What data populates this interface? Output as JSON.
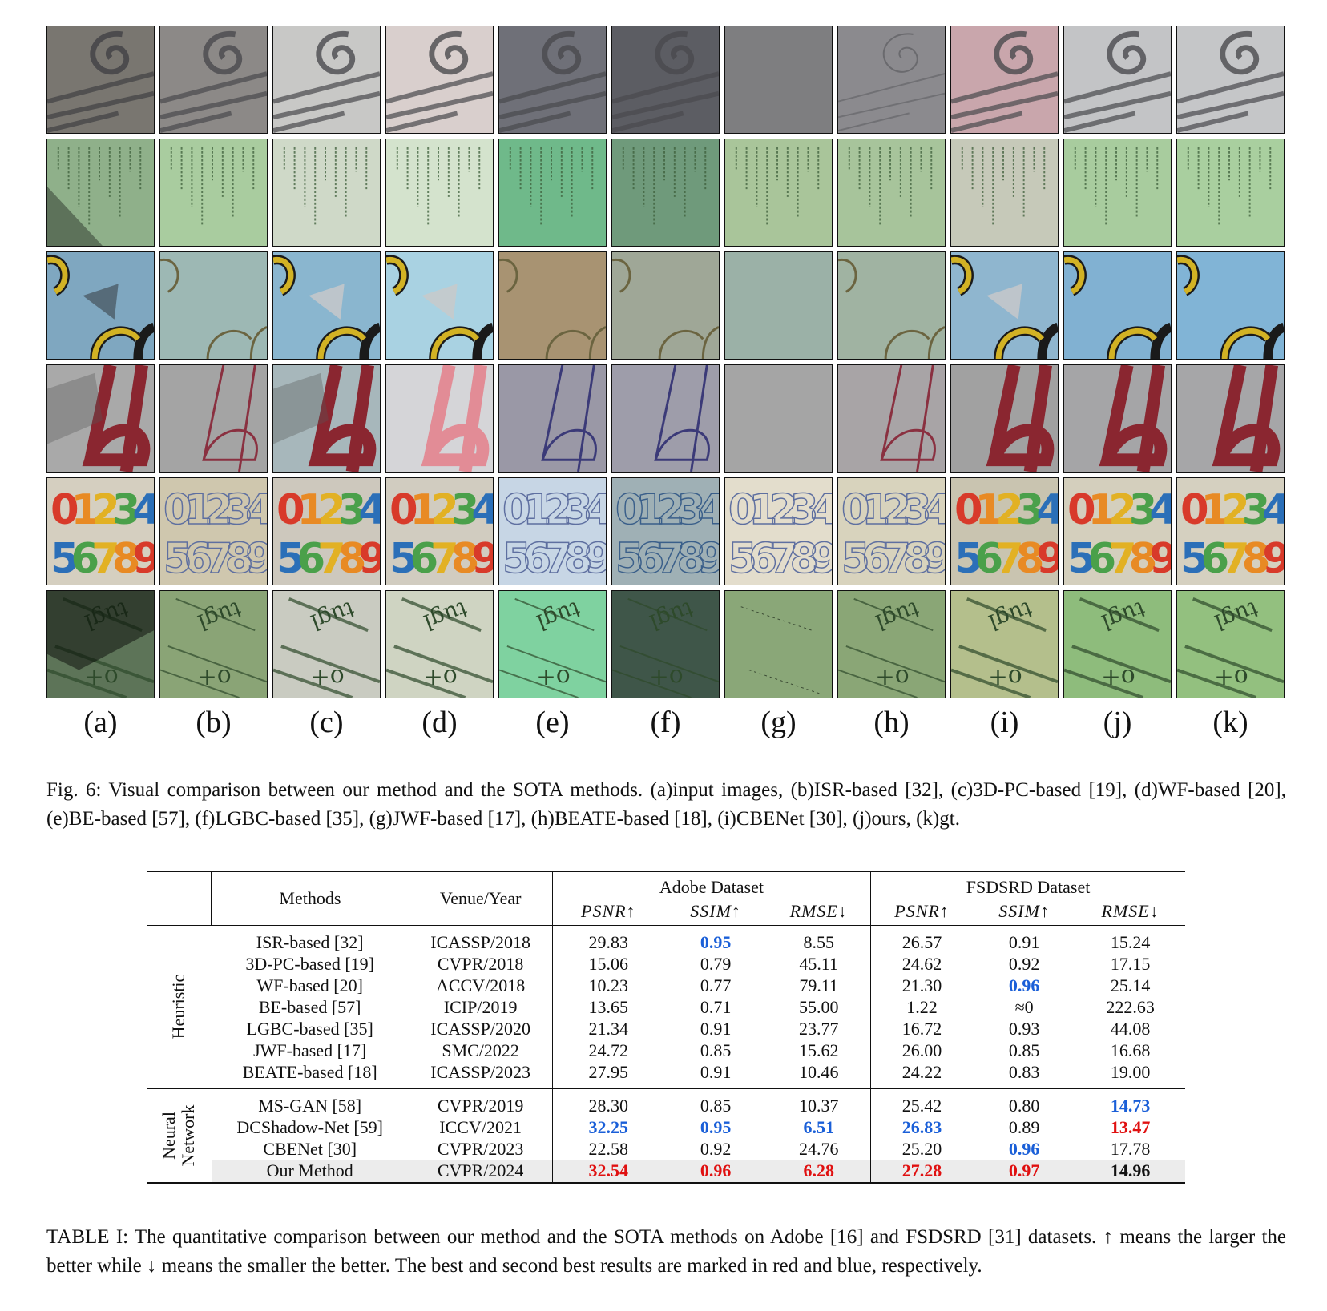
{
  "grid": {
    "rows": [
      {
        "kind": "spiral"
      },
      {
        "kind": "text"
      },
      {
        "kind": "arcs"
      },
      {
        "kind": "letter-b"
      },
      {
        "kind": "digits"
      },
      {
        "kind": "script"
      }
    ],
    "columns": [
      "(a)",
      "(b)",
      "(c)",
      "(d)",
      "(e)",
      "(f)",
      "(g)",
      "(h)",
      "(i)",
      "(j)",
      "(k)"
    ],
    "digit_line1": "01234",
    "digit_line2": "56789"
  },
  "figure_caption": "Fig. 6: Visual comparison between our method and the SOTA methods. (a)input images, (b)ISR-based [32], (c)3D-PC-based [19], (d)WF-based [20], (e)BE-based [57], (f)LGBC-based [35], (g)JWF-based [17], (h)BEATE-based [18], (i)CBENet [30], (j)ours, (k)gt.",
  "table": {
    "header": {
      "methods": "Methods",
      "venue": "Venue/Year",
      "adobe": "Adobe Dataset",
      "fsdsrd": "FSDSRD Dataset",
      "metrics": [
        "PSNR↑",
        "SSIM↑",
        "RMSE↓",
        "PSNR↑",
        "SSIM↑",
        "RMSE↓"
      ]
    },
    "groups": [
      {
        "label": "Heuristic",
        "rows": [
          {
            "method": "ISR-based [32]",
            "venue": "ICASSP/2018",
            "vals": [
              "29.83",
              "0.95",
              "8.55",
              "26.57",
              "0.91",
              "15.24"
            ],
            "styles": [
              "",
              "blue",
              "",
              "",
              "",
              ""
            ]
          },
          {
            "method": "3D-PC-based [19]",
            "venue": "CVPR/2018",
            "vals": [
              "15.06",
              "0.79",
              "45.11",
              "24.62",
              "0.92",
              "17.15"
            ],
            "styles": [
              "",
              "",
              "",
              "",
              "",
              ""
            ]
          },
          {
            "method": "WF-based [20]",
            "venue": "ACCV/2018",
            "vals": [
              "10.23",
              "0.77",
              "79.11",
              "21.30",
              "0.96",
              "25.14"
            ],
            "styles": [
              "",
              "",
              "",
              "",
              "blue",
              ""
            ]
          },
          {
            "method": "BE-based [57]",
            "venue": "ICIP/2019",
            "vals": [
              "13.65",
              "0.71",
              "55.00",
              "1.22",
              "≈0",
              "222.63"
            ],
            "styles": [
              "",
              "",
              "",
              "",
              "",
              ""
            ]
          },
          {
            "method": "LGBC-based [35]",
            "venue": "ICASSP/2020",
            "vals": [
              "21.34",
              "0.91",
              "23.77",
              "16.72",
              "0.93",
              "44.08"
            ],
            "styles": [
              "",
              "",
              "",
              "",
              "",
              ""
            ]
          },
          {
            "method": "JWF-based [17]",
            "venue": "SMC/2022",
            "vals": [
              "24.72",
              "0.85",
              "15.62",
              "26.00",
              "0.85",
              "16.68"
            ],
            "styles": [
              "",
              "",
              "",
              "",
              "",
              ""
            ]
          },
          {
            "method": "BEATE-based [18]",
            "venue": "ICASSP/2023",
            "vals": [
              "27.95",
              "0.91",
              "10.46",
              "24.22",
              "0.83",
              "19.00"
            ],
            "styles": [
              "",
              "",
              "",
              "",
              "",
              ""
            ]
          }
        ]
      },
      {
        "label": "Neural Network",
        "label_lines": [
          "Neural",
          "Network"
        ],
        "rows": [
          {
            "method": "MS-GAN [58]",
            "venue": "CVPR/2019",
            "vals": [
              "28.30",
              "0.85",
              "10.37",
              "25.42",
              "0.80",
              "14.73"
            ],
            "styles": [
              "",
              "",
              "",
              "",
              "",
              "blue"
            ]
          },
          {
            "method": "DCShadow-Net [59]",
            "venue": "ICCV/2021",
            "vals": [
              "32.25",
              "0.95",
              "6.51",
              "26.83",
              "0.89",
              "13.47"
            ],
            "styles": [
              "blue",
              "blue",
              "blue",
              "blue",
              "",
              "red"
            ]
          },
          {
            "method": "CBENet [30]",
            "venue": "CVPR/2023",
            "vals": [
              "22.58",
              "0.92",
              "24.76",
              "25.20",
              "0.96",
              "17.78"
            ],
            "styles": [
              "",
              "",
              "",
              "",
              "blue",
              ""
            ]
          },
          {
            "method": "Our Method",
            "venue": "CVPR/2024",
            "vals": [
              "32.54",
              "0.96",
              "6.28",
              "27.28",
              "0.97",
              "14.96"
            ],
            "styles": [
              "red",
              "red",
              "red",
              "red",
              "red",
              "bold"
            ],
            "highlight": true
          }
        ]
      }
    ]
  },
  "table_caption": "TABLE I: The quantitative comparison between our method and the SOTA methods on Adobe [16] and FSDSRD [31] datasets. ↑ means the larger the better while ↓ means the smaller the better. The best and second best results are marked in red and blue, respectively.",
  "colors": {
    "red": "#e01010",
    "blue": "#1a5fd8"
  }
}
